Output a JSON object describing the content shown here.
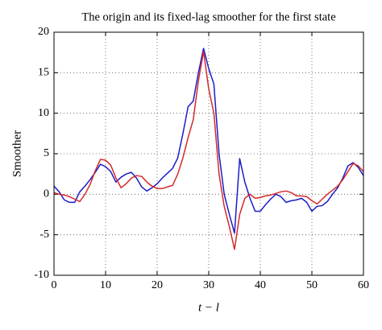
{
  "chart_data": {
    "type": "line",
    "title": "The origin and its fixed-lag smoother for the first state",
    "x_label": "t − l",
    "y_label": "Smoother",
    "x": [
      0,
      1,
      2,
      3,
      4,
      5,
      6,
      7,
      8,
      9,
      10,
      11,
      12,
      13,
      14,
      15,
      16,
      17,
      18,
      19,
      20,
      21,
      22,
      23,
      24,
      25,
      26,
      27,
      28,
      29,
      30,
      31,
      32,
      33,
      34,
      35,
      36,
      37,
      38,
      39,
      40,
      41,
      42,
      43,
      44,
      45,
      46,
      47,
      48,
      49,
      50,
      51,
      52,
      53,
      54,
      55,
      56,
      57,
      58,
      59,
      60
    ],
    "series": [
      {
        "color": "#1c1cc8",
        "values": [
          1,
          0.3,
          -0.7,
          -1,
          -1,
          0.3,
          1,
          1.8,
          2.7,
          3.7,
          3.4,
          2.8,
          1.5,
          2.1,
          2.5,
          2.7,
          2,
          0.9,
          0.4,
          0.8,
          1.3,
          2,
          2.6,
          3.2,
          4.5,
          7.5,
          10.8,
          11.5,
          15,
          18,
          15.5,
          13.6,
          5,
          0,
          -2.5,
          -4.8,
          4.4,
          1.5,
          -0.5,
          -2.1,
          -2.1,
          -1.3,
          -0.6,
          0,
          -0.3,
          -1,
          -0.8,
          -0.7,
          -0.5,
          -1,
          -2.1,
          -1.5,
          -1.4,
          -0.9,
          0,
          0.8,
          2,
          3.5,
          3.9,
          3.3,
          2.3
        ]
      },
      {
        "color": "#d42a2a",
        "values": [
          0.2,
          0,
          -0.1,
          -0.3,
          -0.6,
          -0.9,
          0,
          1.2,
          2.9,
          4.3,
          4.2,
          3.6,
          2,
          0.8,
          1.3,
          2,
          2.3,
          2.2,
          1.5,
          1,
          0.7,
          0.7,
          0.9,
          1.1,
          2.5,
          4.5,
          7,
          9.2,
          14,
          17.6,
          13,
          10,
          2.5,
          -1.5,
          -4,
          -6.8,
          -2.5,
          -0.5,
          0,
          -0.5,
          -0.4,
          -0.2,
          -0.1,
          0.1,
          0.3,
          0.4,
          0.2,
          -0.2,
          -0.2,
          -0.3,
          -0.8,
          -1.2,
          -0.6,
          0,
          0.5,
          1,
          1.8,
          2.8,
          3.8,
          3.5,
          2.8
        ]
      }
    ],
    "xlim": [
      0,
      60
    ],
    "xticks": [
      0,
      10,
      20,
      30,
      40,
      50,
      60
    ],
    "ylim": [
      -10,
      20
    ],
    "yticks": [
      -10,
      -5,
      0,
      5,
      10,
      15,
      20
    ],
    "grid": true
  }
}
